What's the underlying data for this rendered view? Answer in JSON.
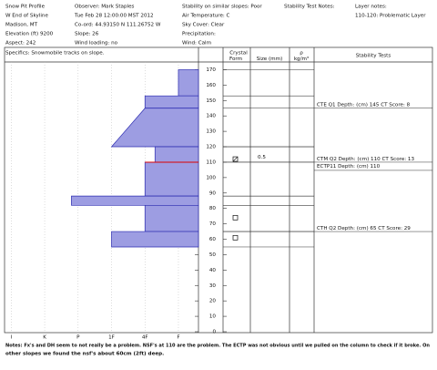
{
  "header": {
    "left": [
      "Snow Pit Profile",
      "W End of Skyline",
      "Madison, MT",
      "Elevation (ft) 9200",
      "Aspect: 242"
    ],
    "middle": [
      "Observer: Mark Staples",
      "Tue Feb 28 12:00:00 MST 2012",
      "Co-ord: 44.93150 N 111.26752 W",
      "Slope: 26",
      "Wind loading: no"
    ],
    "right": [
      "Stability on similar slopes: Poor",
      "Air Temperature: C",
      "Sky Cover: Clear",
      "Precipitation:",
      "Wind: Calm"
    ],
    "test_notes_title": "Stability Test Notes:",
    "layer_notes_title": "Layer notes:",
    "layer_notes": [
      "110-120: Problematic Layer"
    ],
    "specifics": "Specifics: Snowmobile tracks on slope."
  },
  "columns": {
    "crystal": "Crystal",
    "form": "Form",
    "size": "Size (mm)",
    "rho": "ρ",
    "density_unit": "kg/m³",
    "stability": "Stability Tests"
  },
  "chart_data": {
    "type": "hardness-profile",
    "ylim": [
      0,
      175
    ],
    "yticks": [
      0,
      10,
      20,
      30,
      40,
      50,
      60,
      70,
      80,
      90,
      100,
      110,
      120,
      130,
      140,
      150,
      160,
      170
    ],
    "xlim": [
      6.2,
      0.4
    ],
    "xticks": [
      {
        "value": 6,
        "label": "I"
      },
      {
        "value": 5,
        "label": "K"
      },
      {
        "value": 4,
        "label": "P"
      },
      {
        "value": 3,
        "label": "1F"
      },
      {
        "value": 2,
        "label": "4F"
      },
      {
        "value": 1,
        "label": "F"
      }
    ],
    "color": "#9d9de2",
    "edge_color": "#2b2bb0",
    "layers": [
      {
        "top": 170,
        "bottom": 153,
        "hardness_top": 1,
        "hardness_bottom": 1
      },
      {
        "top": 153,
        "bottom": 145,
        "hardness_top": 2,
        "hardness_bottom": 2
      },
      {
        "top": 145,
        "bottom": 120,
        "hardness_top": 2,
        "hardness_bottom": 3
      },
      {
        "top": 120,
        "bottom": 110,
        "hardness_top": 1.7,
        "hardness_bottom": 1.7
      },
      {
        "top": 110,
        "bottom": 88,
        "hardness_top": 2,
        "hardness_bottom": 2
      },
      {
        "top": 88,
        "bottom": 82,
        "hardness_top": 4.2,
        "hardness_bottom": 4.2
      },
      {
        "top": 82,
        "bottom": 65,
        "hardness_top": 2,
        "hardness_bottom": 2
      },
      {
        "top": 65,
        "bottom": 55,
        "hardness_top": 3,
        "hardness_bottom": 3
      }
    ],
    "highlight": {
      "depth": 110,
      "color": "#dd0000"
    }
  },
  "crystals": [
    {
      "depth": 112,
      "form": "slashed-square",
      "size": "0.5"
    },
    {
      "depth": 74,
      "form": "square"
    },
    {
      "depth": 61,
      "form": "square"
    }
  ],
  "stability_tests": [
    {
      "depth": 145,
      "text": "CTE Q1 Depth: (cm) 145 CT Score: 8"
    },
    {
      "depth": 110,
      "text": "CTM Q2 Depth: (cm) 110 CT Score: 13"
    },
    {
      "depth": 110,
      "text": "ECTP11  Depth: (cm) 110"
    },
    {
      "depth": 65,
      "text": "CTH Q2 Depth: (cm) 65 CT Score: 29"
    }
  ],
  "notes": [
    "Notes: Fx's and DH seem to not really be a problem. NSF's at 110 are the problem. The ECTP was not obvious until we pulled on the column to check if it broke. On",
    "other slopes we found the nsf's about 60cm (2ft) deep."
  ]
}
